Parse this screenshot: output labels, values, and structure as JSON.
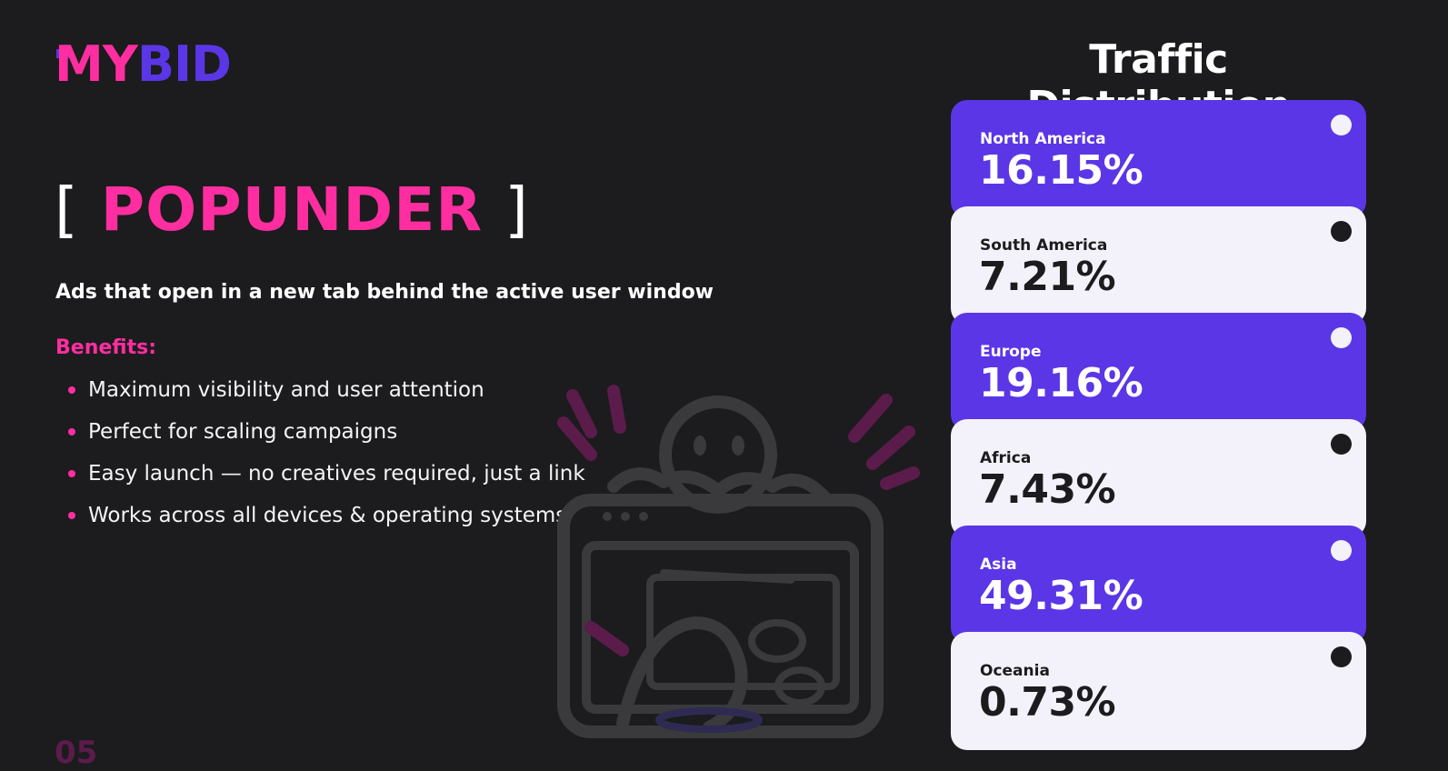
{
  "logo": {
    "part1": "MY",
    "part2": "BID"
  },
  "heading": {
    "open_bracket": "[",
    "word": "POPUNDER",
    "close_bracket": "]"
  },
  "subtitle": "Ads that open in a new tab behind the active user window",
  "benefits": {
    "heading": "Benefits:",
    "items": [
      "Maximum visibility and user attention",
      "Perfect for scaling campaigns",
      "Easy launch — no creatives required, just a link",
      "Works across all devices & operating systems"
    ]
  },
  "page_number": "05",
  "distribution": {
    "title": "Traffic Distribution",
    "regions": [
      {
        "name": "North America",
        "value": "16.15%"
      },
      {
        "name": "South America",
        "value": "7.21%"
      },
      {
        "name": "Europe",
        "value": "19.16%"
      },
      {
        "name": "Africa",
        "value": "7.43%"
      },
      {
        "name": "Asia",
        "value": "49.31%"
      },
      {
        "name": "Oceania",
        "value": "0.73%"
      }
    ]
  },
  "colors": {
    "accent_pink": "#ff2ea0",
    "accent_purple": "#5b36e6",
    "background": "#1c1b1d",
    "card_light": "#f3f2fa"
  },
  "icons": {
    "illustration": "character-peeking-browser-window-illustration"
  }
}
